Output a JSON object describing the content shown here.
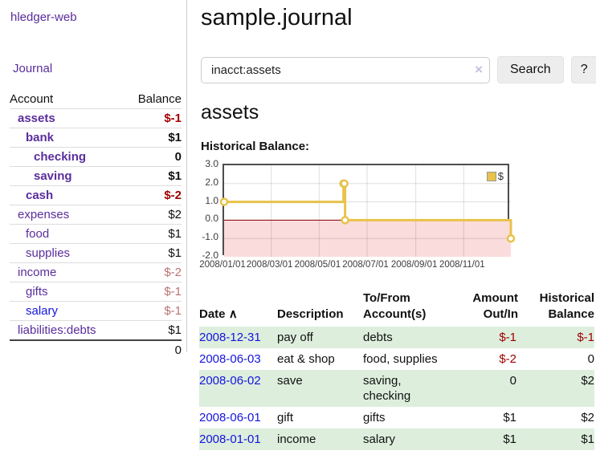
{
  "app": {
    "title": "hledger-web"
  },
  "sidebar": {
    "journal_link": "Journal",
    "accounts": {
      "header_account": "Account",
      "header_balance": "Balance",
      "rows": [
        {
          "name": "assets",
          "balance": "$-1"
        },
        {
          "name": "bank",
          "balance": "$1"
        },
        {
          "name": "checking",
          "balance": "0"
        },
        {
          "name": "saving",
          "balance": "$1"
        },
        {
          "name": "cash",
          "balance": "$-2"
        },
        {
          "name": "expenses",
          "balance": "$2"
        },
        {
          "name": "food",
          "balance": "$1"
        },
        {
          "name": "supplies",
          "balance": "$1"
        },
        {
          "name": "income",
          "balance": "$-2"
        },
        {
          "name": "gifts",
          "balance": "$-1"
        },
        {
          "name": "salary",
          "balance": "$-1"
        },
        {
          "name": "liabilities:debts",
          "balance": "$1"
        }
      ],
      "total": "0"
    }
  },
  "main": {
    "title": "sample.journal",
    "search": {
      "value": "inacct:assets",
      "clear_icon": "×",
      "button_label": "Search",
      "help_label": "?"
    },
    "account_heading": "assets",
    "chart_label": "Historical Balance:"
  },
  "chart_data": {
    "type": "line",
    "step": true,
    "title": "Historical Balance",
    "x_range": [
      "2008-01-01",
      "2008-12-31"
    ],
    "ylim": [
      -2,
      3
    ],
    "series": [
      {
        "name": "$",
        "color": "#e8c24a",
        "points": [
          {
            "x": "2008-01-01",
            "y": 1
          },
          {
            "x": "2008-06-01",
            "y": 2
          },
          {
            "x": "2008-06-02",
            "y": 2
          },
          {
            "x": "2008-06-03",
            "y": 0
          },
          {
            "x": "2008-12-31",
            "y": -1
          }
        ]
      }
    ],
    "y_ticks": [
      {
        "label": "3.0",
        "value": 3
      },
      {
        "label": "2.0",
        "value": 2
      },
      {
        "label": "1.0",
        "value": 1
      },
      {
        "label": "0.0",
        "value": 0
      },
      {
        "label": "-1.0",
        "value": -1
      },
      {
        "label": "-2.0",
        "value": -2
      }
    ],
    "x_ticks": [
      {
        "label": "2008/01/01",
        "value": "2008-01-01"
      },
      {
        "label": "2008/03/01",
        "value": "2008-03-01"
      },
      {
        "label": "2008/05/01",
        "value": "2008-05-01"
      },
      {
        "label": "2008/07/01",
        "value": "2008-07-01"
      },
      {
        "label": "2008/09/01",
        "value": "2008-09-01"
      },
      {
        "label": "2008/11/01",
        "value": "2008-11-01"
      }
    ],
    "legend": {
      "position": "top-right",
      "entries": [
        {
          "label": "$",
          "color": "#e8c24a"
        }
      ]
    },
    "grid": true,
    "negative_region_fill": "#fbdcdc",
    "zero_line_color": "#8b0000",
    "line_width": 3
  },
  "register": {
    "headers": {
      "date": "Date",
      "sort_ascending_icon": "∧",
      "description": "Description",
      "accounts": "To/From Account(s)",
      "amount": "Amount Out/In",
      "balance": "Historical Balance"
    },
    "rows": [
      {
        "date": "2008-12-31",
        "description": "pay off",
        "accounts": "debts",
        "amount": "$-1",
        "balance": "$-1"
      },
      {
        "date": "2008-06-03",
        "description": "eat & shop",
        "accounts": "food, supplies",
        "amount": "$-2",
        "balance": "0"
      },
      {
        "date": "2008-06-02",
        "description": "save",
        "accounts": "saving, checking",
        "amount": "0",
        "balance": "$2"
      },
      {
        "date": "2008-06-01",
        "description": "gift",
        "accounts": "gifts",
        "amount": "$1",
        "balance": "$2"
      },
      {
        "date": "2008-01-01",
        "description": "income",
        "accounts": "salary",
        "amount": "$1",
        "balance": "$1"
      }
    ]
  }
}
